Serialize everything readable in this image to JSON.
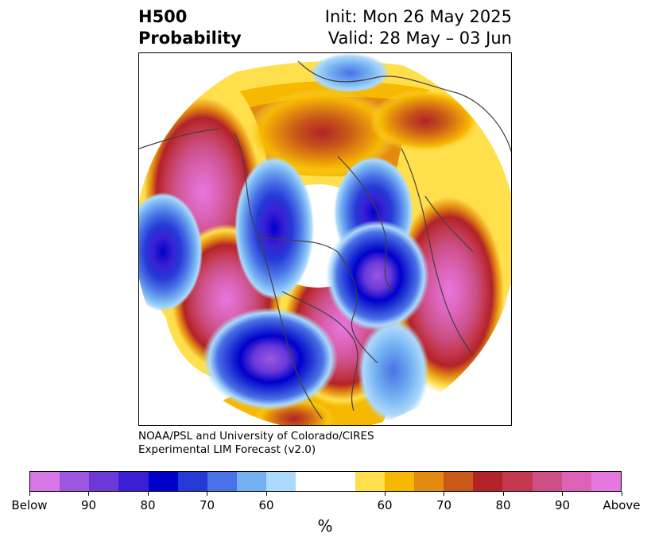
{
  "header": {
    "title_line1": "H500",
    "title_line2": "Probability",
    "init_line": "Init: Mon 26 May 2025",
    "valid_line": "Valid: 28 May – 03 Jun"
  },
  "credit": {
    "line1": "NOAA/PSL and University of Colorado/CIRES",
    "line2": "Experimental LIM Forecast (v2.0)"
  },
  "colorbar": {
    "unit": "%",
    "colors": [
      "#d977e8",
      "#9b57e0",
      "#6a39d8",
      "#3a1fd4",
      "#0000cc",
      "#2539d6",
      "#4a72e6",
      "#73b0f2",
      "#abd9fb",
      "#ffffff",
      "#ffe04c",
      "#f6b800",
      "#e38a10",
      "#c85818",
      "#b22228",
      "#c4384f",
      "#cc4f86",
      "#db62b4",
      "#e677e0"
    ],
    "tick_labels": [
      "Below",
      "90",
      "80",
      "70",
      "60",
      "60",
      "70",
      "80",
      "90",
      "Above"
    ]
  },
  "map": {
    "projection": "north-polar-stereographic",
    "field": "500 hPa height probability"
  }
}
